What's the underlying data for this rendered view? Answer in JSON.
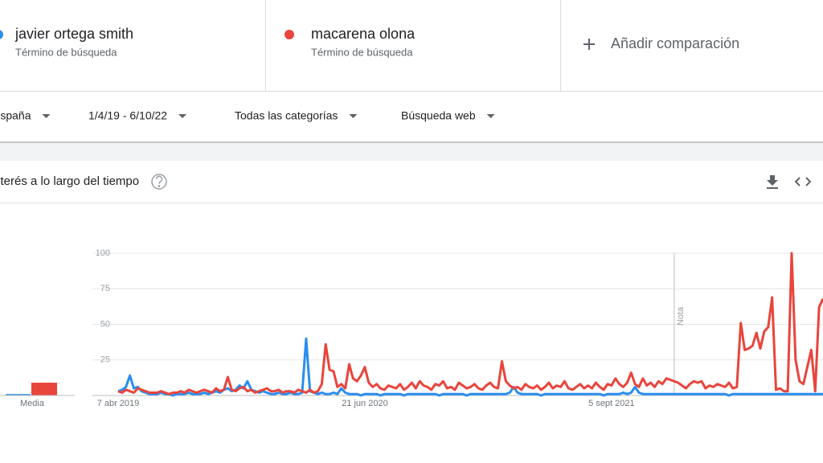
{
  "terms": [
    {
      "subtitle": "Término de búsqueda"
    },
    {
      "subtitle": "Término de búsqueda"
    }
  ],
  "add_comparison": "Añadir comparación",
  "filters": [
    "España",
    "1/4/19 - 6/10/22",
    "Todas las categorías",
    "Búsqueda web"
  ],
  "chart_data": [
    {
      "type": "bar",
      "categories": [
        "Media"
      ],
      "ylim": [
        0,
        100
      ],
      "series": [
        {
          "color": "#2a8ef0",
          "values": [
            1
          ]
        },
        {
          "color": "#e8453c",
          "values": [
            9
          ]
        }
      ]
    },
    {
      "type": "line",
      "title": "Interés a lo largo del tiempo",
      "ylim": [
        0,
        100
      ],
      "yticks": [
        25,
        50,
        75,
        100
      ],
      "grid": true,
      "categories": [
        "7 abr 2019",
        null,
        null,
        null,
        null,
        null,
        null,
        null,
        null,
        null,
        null,
        null,
        null,
        null,
        null,
        null,
        null,
        null,
        null,
        null,
        null,
        null,
        null,
        null,
        null,
        null,
        null,
        null,
        null,
        null,
        null,
        null,
        null,
        null,
        null,
        null,
        null,
        null,
        null,
        null,
        null,
        null,
        null,
        null,
        null,
        null,
        null,
        null,
        null,
        null,
        null,
        null,
        null,
        null,
        null,
        null,
        null,
        null,
        null,
        null,
        null,
        null,
        null,
        "21 jun 2020",
        null,
        null,
        null,
        null,
        null,
        null,
        null,
        null,
        null,
        null,
        null,
        null,
        null,
        null,
        null,
        null,
        null,
        null,
        null,
        null,
        null,
        null,
        null,
        null,
        null,
        null,
        null,
        null,
        null,
        null,
        null,
        null,
        null,
        null,
        null,
        null,
        null,
        null,
        null,
        null,
        null,
        null,
        null,
        null,
        null,
        null,
        null,
        null,
        null,
        null,
        null,
        null,
        null,
        null,
        null,
        null,
        null,
        null,
        null,
        null,
        null,
        null,
        "5 sept 2021",
        null,
        null,
        null,
        null,
        null,
        null,
        null,
        null,
        null,
        null,
        null,
        null,
        null,
        null,
        null,
        null,
        null,
        null,
        null,
        null,
        null,
        null,
        null,
        null,
        null,
        null,
        null,
        null,
        null,
        null,
        null,
        null,
        null,
        null,
        null,
        null,
        null,
        null,
        null,
        null,
        null,
        null,
        null,
        null,
        null,
        null,
        null,
        null,
        null,
        null,
        null,
        null,
        null,
        null
      ],
      "series": [
        {
          "name": "javier ortega smith",
          "color": "#2a8ef0",
          "values": [
            3,
            4,
            6,
            14,
            5,
            6,
            3,
            2,
            1,
            1,
            1,
            2,
            1,
            1,
            0,
            1,
            1,
            1,
            2,
            1,
            1,
            1,
            2,
            1,
            2,
            3,
            2,
            4,
            5,
            3,
            4,
            7,
            5,
            10,
            4,
            3,
            2,
            3,
            2,
            1,
            1,
            2,
            1,
            1,
            2,
            1,
            1,
            2,
            40,
            3,
            2,
            1,
            2,
            1,
            1,
            2,
            1,
            5,
            2,
            1,
            1,
            1,
            0,
            1,
            1,
            1,
            1,
            0,
            1,
            1,
            1,
            1,
            1,
            0,
            1,
            1,
            1,
            1,
            1,
            1,
            1,
            1,
            0,
            1,
            1,
            1,
            1,
            1,
            1,
            0,
            1,
            1,
            1,
            1,
            1,
            1,
            1,
            1,
            1,
            1,
            2,
            6,
            2,
            1,
            1,
            1,
            1,
            1,
            0,
            1,
            1,
            1,
            1,
            1,
            1,
            1,
            1,
            1,
            1,
            1,
            1,
            1,
            1,
            1,
            0,
            1,
            1,
            1,
            1,
            2,
            1,
            2,
            6,
            2,
            1,
            1,
            1,
            1,
            1,
            1,
            1,
            1,
            1,
            1,
            1,
            1,
            1,
            1,
            1,
            1,
            1,
            1,
            1,
            1,
            1,
            1,
            0,
            1,
            1,
            1,
            1,
            1,
            1,
            1,
            1,
            1,
            1,
            1,
            1,
            1,
            1,
            1,
            1,
            1,
            1,
            1,
            1,
            1,
            1,
            1,
            1
          ]
        },
        {
          "name": "macarena olona",
          "color": "#e8453c",
          "values": [
            3,
            2,
            4,
            3,
            2,
            5,
            4,
            3,
            2,
            2,
            2,
            3,
            2,
            1,
            2,
            2,
            3,
            2,
            4,
            3,
            2,
            3,
            4,
            3,
            2,
            5,
            3,
            4,
            13,
            4,
            3,
            5,
            6,
            3,
            4,
            2,
            3,
            4,
            5,
            3,
            3,
            4,
            2,
            3,
            3,
            2,
            4,
            3,
            2,
            4,
            2,
            3,
            8,
            36,
            18,
            17,
            6,
            8,
            5,
            22,
            12,
            10,
            14,
            20,
            9,
            6,
            8,
            5,
            4,
            7,
            6,
            5,
            8,
            4,
            6,
            9,
            5,
            10,
            7,
            6,
            4,
            8,
            7,
            10,
            5,
            6,
            4,
            9,
            7,
            5,
            6,
            8,
            5,
            4,
            7,
            9,
            6,
            5,
            24,
            10,
            7,
            5,
            6,
            4,
            8,
            6,
            5,
            7,
            4,
            6,
            9,
            5,
            7,
            6,
            10,
            5,
            4,
            6,
            8,
            5,
            7,
            5,
            9,
            6,
            4,
            8,
            7,
            12,
            8,
            6,
            9,
            16,
            8,
            6,
            12,
            7,
            9,
            6,
            10,
            8,
            12,
            11,
            10,
            9,
            7,
            5,
            8,
            10,
            9,
            10,
            5,
            7,
            6,
            8,
            7,
            6,
            9,
            5,
            6,
            51,
            32,
            33,
            35,
            44,
            33,
            45,
            48,
            69,
            4,
            5,
            3,
            3,
            100,
            25,
            10,
            8,
            20,
            32,
            3,
            62,
            68
          ]
        }
      ],
      "annotations": [
        {
          "text": "Nota",
          "x": 142
        }
      ]
    }
  ]
}
